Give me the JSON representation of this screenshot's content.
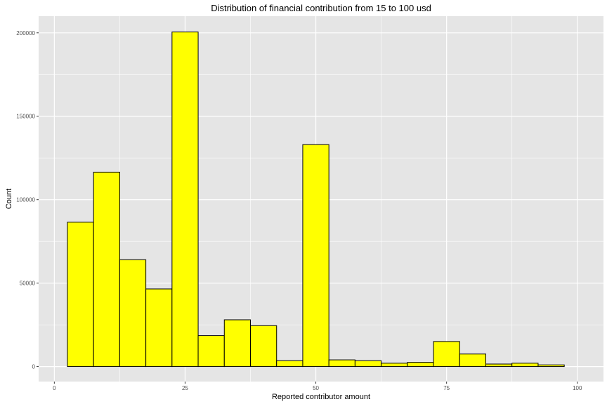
{
  "chart_data": {
    "type": "bar",
    "title": "Distribution of financial contribution from 15 to 100 usd",
    "xlabel": "Reported contributor amount",
    "ylabel": "Count",
    "xlim": [
      -3,
      105
    ],
    "ylim": [
      -9000,
      210000
    ],
    "x_ticks": [
      0,
      25,
      50,
      75,
      100
    ],
    "y_ticks": [
      0,
      50000,
      100000,
      150000,
      200000
    ],
    "x_minor": [
      12.5,
      37.5,
      62.5,
      87.5
    ],
    "y_minor": [
      25000,
      75000,
      125000,
      175000
    ],
    "bin_width": 5,
    "bins": [
      {
        "x_center": 5,
        "count": 86500
      },
      {
        "x_center": 10,
        "count": 116500
      },
      {
        "x_center": 15,
        "count": 64000
      },
      {
        "x_center": 20,
        "count": 46500
      },
      {
        "x_center": 25,
        "count": 200500
      },
      {
        "x_center": 30,
        "count": 18500
      },
      {
        "x_center": 35,
        "count": 28000
      },
      {
        "x_center": 40,
        "count": 24500
      },
      {
        "x_center": 45,
        "count": 3500
      },
      {
        "x_center": 50,
        "count": 133000
      },
      {
        "x_center": 55,
        "count": 4000
      },
      {
        "x_center": 60,
        "count": 3500
      },
      {
        "x_center": 65,
        "count": 2000
      },
      {
        "x_center": 70,
        "count": 2500
      },
      {
        "x_center": 75,
        "count": 15000
      },
      {
        "x_center": 80,
        "count": 7500
      },
      {
        "x_center": 85,
        "count": 1500
      },
      {
        "x_center": 90,
        "count": 2000
      },
      {
        "x_center": 95,
        "count": 1000
      }
    ],
    "colors": {
      "panel": "#e5e5e5",
      "grid": "#ffffff",
      "fill": "#ffff00",
      "outline": "#000000"
    }
  }
}
